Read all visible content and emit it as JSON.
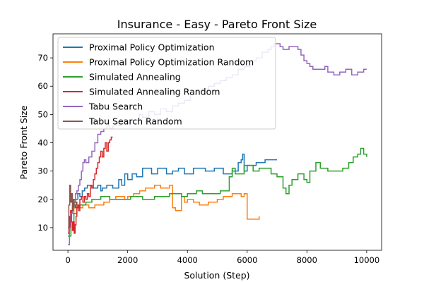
{
  "chart_data": {
    "type": "line",
    "title": "Insurance - Easy - Pareto Front Size",
    "xlabel": "Solution (Step)",
    "ylabel": "Pareto Front Size",
    "xlim": [
      -500,
      10500
    ],
    "ylim": [
      2,
      78.5
    ],
    "xticks": [
      0,
      2000,
      4000,
      6000,
      8000,
      10000
    ],
    "yticks": [
      10,
      20,
      30,
      40,
      50,
      60,
      70
    ],
    "grid": false,
    "legend_position": "upper-left",
    "series": [
      {
        "name": "Proximal Policy Optimization",
        "color": "#1f77b4",
        "points": [
          [
            0,
            8
          ],
          [
            50,
            14
          ],
          [
            100,
            16
          ],
          [
            150,
            17
          ],
          [
            200,
            19
          ],
          [
            260,
            20
          ],
          [
            330,
            22
          ],
          [
            400,
            21
          ],
          [
            480,
            23
          ],
          [
            560,
            24
          ],
          [
            650,
            25
          ],
          [
            800,
            24
          ],
          [
            1000,
            25
          ],
          [
            1100,
            23
          ],
          [
            1150,
            24
          ],
          [
            1300,
            25
          ],
          [
            1500,
            24
          ],
          [
            1700,
            27
          ],
          [
            1800,
            25
          ],
          [
            1900,
            29
          ],
          [
            2000,
            27
          ],
          [
            2150,
            29
          ],
          [
            2300,
            28
          ],
          [
            2500,
            31
          ],
          [
            2800,
            29
          ],
          [
            3000,
            31
          ],
          [
            3300,
            29
          ],
          [
            3500,
            30
          ],
          [
            3700,
            31
          ],
          [
            3900,
            29
          ],
          [
            4200,
            31
          ],
          [
            4600,
            30
          ],
          [
            4900,
            31
          ],
          [
            5200,
            29
          ],
          [
            5500,
            30
          ],
          [
            5700,
            33
          ],
          [
            5800,
            34
          ],
          [
            5850,
            36
          ],
          [
            5900,
            30
          ],
          [
            6000,
            32
          ],
          [
            6300,
            33
          ],
          [
            6600,
            34
          ],
          [
            7000,
            34
          ]
        ]
      },
      {
        "name": "Proximal Policy Optimization Random",
        "color": "#ff7f0e",
        "points": [
          [
            0,
            8
          ],
          [
            50,
            12
          ],
          [
            120,
            15
          ],
          [
            200,
            17
          ],
          [
            300,
            18
          ],
          [
            400,
            17
          ],
          [
            500,
            18
          ],
          [
            700,
            17
          ],
          [
            900,
            18
          ],
          [
            1100,
            18
          ],
          [
            1200,
            19
          ],
          [
            1400,
            20
          ],
          [
            1600,
            21
          ],
          [
            1900,
            20
          ],
          [
            2000,
            21
          ],
          [
            2200,
            22
          ],
          [
            2400,
            23
          ],
          [
            2600,
            24
          ],
          [
            2900,
            25
          ],
          [
            3100,
            24
          ],
          [
            3300,
            24
          ],
          [
            3400,
            25
          ],
          [
            3450,
            25
          ],
          [
            3500,
            17
          ],
          [
            3600,
            16
          ],
          [
            3800,
            21
          ],
          [
            3900,
            19
          ],
          [
            4000,
            20
          ],
          [
            4200,
            19
          ],
          [
            4400,
            18
          ],
          [
            4700,
            19
          ],
          [
            5000,
            20
          ],
          [
            5200,
            21
          ],
          [
            5500,
            22
          ],
          [
            5800,
            21
          ],
          [
            5900,
            22
          ],
          [
            6000,
            13
          ],
          [
            6200,
            13
          ],
          [
            6400,
            14
          ]
        ]
      },
      {
        "name": "Simulated Annealing",
        "color": "#2ca02c",
        "points": [
          [
            0,
            7
          ],
          [
            100,
            12
          ],
          [
            200,
            15
          ],
          [
            300,
            17
          ],
          [
            400,
            18
          ],
          [
            600,
            19
          ],
          [
            800,
            20
          ],
          [
            1100,
            21
          ],
          [
            1400,
            20
          ],
          [
            1800,
            20
          ],
          [
            2100,
            21
          ],
          [
            2500,
            20
          ],
          [
            2900,
            21
          ],
          [
            3400,
            22
          ],
          [
            3800,
            21
          ],
          [
            4000,
            22
          ],
          [
            4300,
            23
          ],
          [
            4500,
            22
          ],
          [
            4800,
            22
          ],
          [
            5100,
            23
          ],
          [
            5300,
            23
          ],
          [
            5400,
            28
          ],
          [
            5500,
            31
          ],
          [
            5600,
            29
          ],
          [
            5800,
            29
          ],
          [
            5900,
            32
          ],
          [
            6200,
            30
          ],
          [
            6400,
            31
          ],
          [
            6800,
            29
          ],
          [
            7000,
            28
          ],
          [
            7200,
            24
          ],
          [
            7300,
            22
          ],
          [
            7400,
            25
          ],
          [
            7500,
            27
          ],
          [
            7700,
            29
          ],
          [
            7900,
            27
          ],
          [
            8000,
            26
          ],
          [
            8100,
            30
          ],
          [
            8300,
            33
          ],
          [
            8450,
            31
          ],
          [
            8700,
            30
          ],
          [
            9100,
            30
          ],
          [
            9200,
            31
          ],
          [
            9400,
            33
          ],
          [
            9550,
            35
          ],
          [
            9700,
            36
          ],
          [
            9800,
            38
          ],
          [
            9900,
            36
          ],
          [
            10000,
            35
          ]
        ]
      },
      {
        "name": "Simulated Annealing Random",
        "color": "#d62728",
        "points": [
          [
            0,
            8
          ],
          [
            30,
            14
          ],
          [
            60,
            10
          ],
          [
            90,
            16
          ],
          [
            120,
            12
          ],
          [
            150,
            9
          ],
          [
            180,
            12
          ],
          [
            210,
            8
          ],
          [
            240,
            11
          ],
          [
            270,
            14
          ],
          [
            300,
            17
          ],
          [
            330,
            18
          ],
          [
            360,
            16
          ],
          [
            400,
            20
          ],
          [
            450,
            21
          ],
          [
            500,
            19
          ],
          [
            550,
            21
          ],
          [
            600,
            20
          ],
          [
            650,
            22
          ],
          [
            700,
            21
          ],
          [
            750,
            25
          ],
          [
            800,
            24
          ],
          [
            850,
            27
          ],
          [
            900,
            29
          ],
          [
            950,
            31
          ],
          [
            1000,
            33
          ],
          [
            1050,
            35
          ],
          [
            1100,
            37
          ],
          [
            1150,
            35
          ],
          [
            1200,
            38
          ],
          [
            1250,
            40
          ],
          [
            1300,
            37
          ],
          [
            1350,
            40
          ],
          [
            1400,
            41
          ],
          [
            1450,
            42
          ],
          [
            1500,
            42
          ]
        ]
      },
      {
        "name": "Tabu Search",
        "color": "#9467bd",
        "points": [
          [
            0,
            4
          ],
          [
            50,
            10
          ],
          [
            100,
            15
          ],
          [
            150,
            18
          ],
          [
            200,
            20
          ],
          [
            250,
            22
          ],
          [
            300,
            23
          ],
          [
            350,
            25
          ],
          [
            400,
            27
          ],
          [
            450,
            30
          ],
          [
            500,
            33
          ],
          [
            550,
            34
          ],
          [
            600,
            33
          ],
          [
            700,
            35
          ],
          [
            800,
            37
          ],
          [
            900,
            40
          ],
          [
            1000,
            43
          ],
          [
            1100,
            44
          ],
          [
            1200,
            45
          ],
          [
            1300,
            46
          ],
          [
            1400,
            45
          ],
          [
            1500,
            46
          ],
          [
            1600,
            47
          ],
          [
            1700,
            46
          ],
          [
            1800,
            47
          ],
          [
            1900,
            48
          ],
          [
            2000,
            47
          ],
          [
            2200,
            48
          ],
          [
            2400,
            50
          ],
          [
            2500,
            49
          ],
          [
            2700,
            51
          ],
          [
            2900,
            50
          ],
          [
            3100,
            52
          ],
          [
            3300,
            51
          ],
          [
            3500,
            53
          ],
          [
            3700,
            54
          ],
          [
            3900,
            55
          ],
          [
            4100,
            57
          ],
          [
            4300,
            58
          ],
          [
            4500,
            59
          ],
          [
            4700,
            60
          ],
          [
            4900,
            61
          ],
          [
            5100,
            62
          ],
          [
            5300,
            63
          ],
          [
            5500,
            64
          ],
          [
            5700,
            66
          ],
          [
            5900,
            67
          ],
          [
            6100,
            69
          ],
          [
            6300,
            70
          ],
          [
            6500,
            72
          ],
          [
            6700,
            73
          ],
          [
            6800,
            74
          ],
          [
            6900,
            75
          ],
          [
            7000,
            75
          ],
          [
            7100,
            74
          ],
          [
            7200,
            73
          ],
          [
            7400,
            74
          ],
          [
            7600,
            74
          ],
          [
            7700,
            73
          ],
          [
            7800,
            71
          ],
          [
            7900,
            69
          ],
          [
            8000,
            68
          ],
          [
            8100,
            67
          ],
          [
            8200,
            66
          ],
          [
            8400,
            66
          ],
          [
            8600,
            67
          ],
          [
            8700,
            65
          ],
          [
            8900,
            64
          ],
          [
            9100,
            65
          ],
          [
            9300,
            66
          ],
          [
            9500,
            64
          ],
          [
            9700,
            65
          ],
          [
            9900,
            66
          ],
          [
            10000,
            66
          ]
        ]
      },
      {
        "name": "Tabu Search Random",
        "color": "#8c564b",
        "points": [
          [
            0,
            10
          ],
          [
            30,
            18
          ],
          [
            60,
            25
          ],
          [
            90,
            19
          ],
          [
            120,
            22
          ],
          [
            150,
            16
          ],
          [
            180,
            20
          ],
          [
            210,
            18
          ],
          [
            240,
            17
          ],
          [
            270,
            19
          ],
          [
            300,
            18
          ]
        ]
      }
    ]
  }
}
